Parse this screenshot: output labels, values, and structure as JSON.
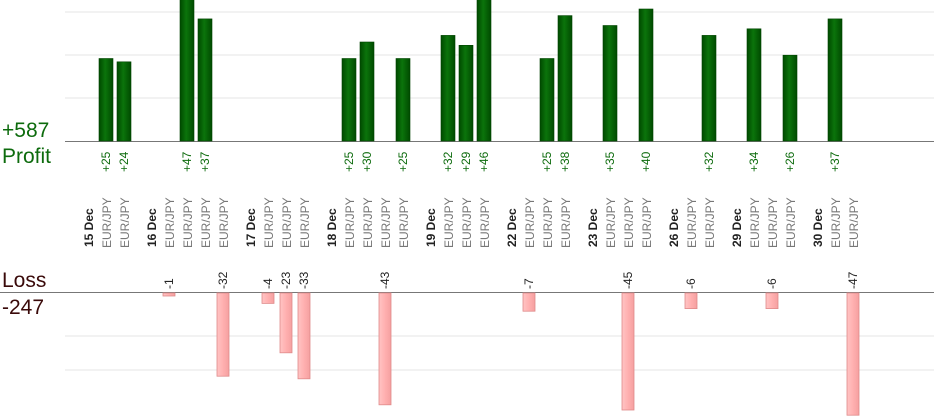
{
  "summary": {
    "profit_total": "+587",
    "profit_label": "Profit",
    "loss_label": "Loss",
    "loss_total": "-247"
  },
  "colors": {
    "profit_bar": "#0a650a",
    "profit_bar_edge": "#004400",
    "profit_text": "#0d6b0d",
    "loss_bar": "#ffb3b3",
    "loss_bar_edge": "#e08a8a",
    "label_gray": "#777777",
    "date_text": "#222222",
    "grid": "#e6e6e6",
    "baseline": "#777777"
  },
  "chart_data": {
    "type": "bar",
    "ylim_profit": [
      0,
      60
    ],
    "ylim_loss": [
      -45,
      0
    ],
    "days": [
      {
        "date": "15 Dec",
        "trades": [
          {
            "pair": "EUR/JPY",
            "value": 25,
            "label": "+25"
          },
          {
            "pair": "EUR/JPY",
            "value": 24,
            "label": "+24"
          }
        ]
      },
      {
        "date": "16 Dec",
        "trades": [
          {
            "pair": "EUR/JPY",
            "value": -1,
            "label": "-1"
          },
          {
            "pair": "EUR/JPY",
            "value": 47,
            "label": "+47"
          },
          {
            "pair": "EUR/JPY",
            "value": 37,
            "label": "+37"
          },
          {
            "pair": "EUR/JPY",
            "value": -32,
            "label": "-32"
          }
        ]
      },
      {
        "date": "17 Dec",
        "trades": [
          {
            "pair": "EUR/JPY",
            "value": -4,
            "label": "-4"
          },
          {
            "pair": "EUR/JPY",
            "value": -23,
            "label": "-23"
          },
          {
            "pair": "EUR/JPY",
            "value": -33,
            "label": "-33"
          }
        ]
      },
      {
        "date": "18 Dec",
        "trades": [
          {
            "pair": "EUR/JPY",
            "value": 25,
            "label": "+25"
          },
          {
            "pair": "EUR/JPY",
            "value": 30,
            "label": "+30"
          },
          {
            "pair": "EUR/JPY",
            "value": -43,
            "label": "-43"
          },
          {
            "pair": "EUR/JPY",
            "value": 25,
            "label": "+25"
          }
        ]
      },
      {
        "date": "19 Dec",
        "trades": [
          {
            "pair": "EUR/JPY",
            "value": 32,
            "label": "+32"
          },
          {
            "pair": "EUR/JPY",
            "value": 29,
            "label": "+29"
          },
          {
            "pair": "EUR/JPY",
            "value": 46,
            "label": "+46"
          }
        ]
      },
      {
        "date": "22 Dec",
        "trades": [
          {
            "pair": "EUR/JPY",
            "value": -7,
            "label": "-7"
          },
          {
            "pair": "EUR/JPY",
            "value": 25,
            "label": "+25"
          },
          {
            "pair": "EUR/JPY",
            "value": 38,
            "label": "+38"
          }
        ]
      },
      {
        "date": "23 Dec",
        "trades": [
          {
            "pair": "EUR/JPY",
            "value": 35,
            "label": "+35"
          },
          {
            "pair": "EUR/JPY",
            "value": -45,
            "label": "-45"
          },
          {
            "pair": "EUR/JPY",
            "value": 40,
            "label": "+40"
          }
        ]
      },
      {
        "date": "26 Dec",
        "trades": [
          {
            "pair": "EUR/JPY",
            "value": -6,
            "label": "-6"
          },
          {
            "pair": "EUR/JPY",
            "value": 32,
            "label": "+32"
          }
        ]
      },
      {
        "date": "29 Dec",
        "trades": [
          {
            "pair": "EUR/JPY",
            "value": 34,
            "label": "+34"
          },
          {
            "pair": "EUR/JPY",
            "value": -6,
            "label": "-6"
          },
          {
            "pair": "EUR/JPY",
            "value": 26,
            "label": "+26"
          }
        ]
      },
      {
        "date": "30 Dec",
        "trades": [
          {
            "pair": "EUR/JPY",
            "value": 37,
            "label": "+37"
          },
          {
            "pair": "EUR/JPY",
            "value": -47,
            "label": "-47"
          }
        ]
      }
    ]
  }
}
